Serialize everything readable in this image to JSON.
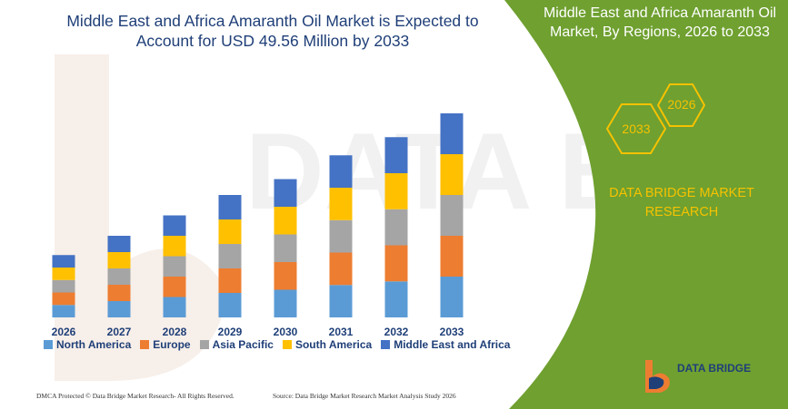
{
  "left_title_line1": "Middle East and Africa Amaranth Oil Market is Expected to",
  "left_title_line2": "Account for USD 49.56 Million by 2033",
  "right_title_line1": "Middle East and Africa Amaranth Oil",
  "right_title_line2": "Market, By Regions, 2026 to 2033",
  "hex_top": "2026",
  "hex_bottom": "2033",
  "brand_line1": "DATA BRIDGE MARKET",
  "brand_line2": "RESEARCH",
  "footer_left": "DMCA Protected © Data Bridge Market Research- All Rights Reserved.",
  "footer_right": "Source: Data Bridge Market Research Market Analysis Study 2026",
  "logo_text": "DATA BRIDGE",
  "colors": {
    "north_america": "#5b9bd5",
    "europe": "#ed7d31",
    "asia_pacific": "#a5a5a5",
    "south_america": "#ffc000",
    "middle_east_africa": "#4472c4",
    "panel_green": "#6fa030",
    "title_blue": "#1f3f78"
  },
  "chart_data": {
    "type": "bar",
    "stacked": true,
    "categories": [
      "2026",
      "2027",
      "2028",
      "2029",
      "2030",
      "2031",
      "2032",
      "2033"
    ],
    "series": [
      {
        "name": "North America",
        "values": [
          5.5,
          7.2,
          9.0,
          10.8,
          12.2,
          14.3,
          15.9,
          18.0
        ]
      },
      {
        "name": "Europe",
        "values": [
          5.5,
          7.2,
          9.0,
          10.8,
          12.2,
          14.3,
          15.9,
          18.0
        ]
      },
      {
        "name": "Asia Pacific",
        "values": [
          5.5,
          7.2,
          9.0,
          10.8,
          12.2,
          14.3,
          15.9,
          18.0
        ]
      },
      {
        "name": "South America",
        "values": [
          5.5,
          7.2,
          9.0,
          10.8,
          12.2,
          14.3,
          15.9,
          18.0
        ]
      },
      {
        "name": "Middle East and Africa",
        "values": [
          5.5,
          7.2,
          9.0,
          10.8,
          12.2,
          14.3,
          15.9,
          18.0
        ]
      }
    ],
    "grid": false,
    "legend": "bottom"
  }
}
